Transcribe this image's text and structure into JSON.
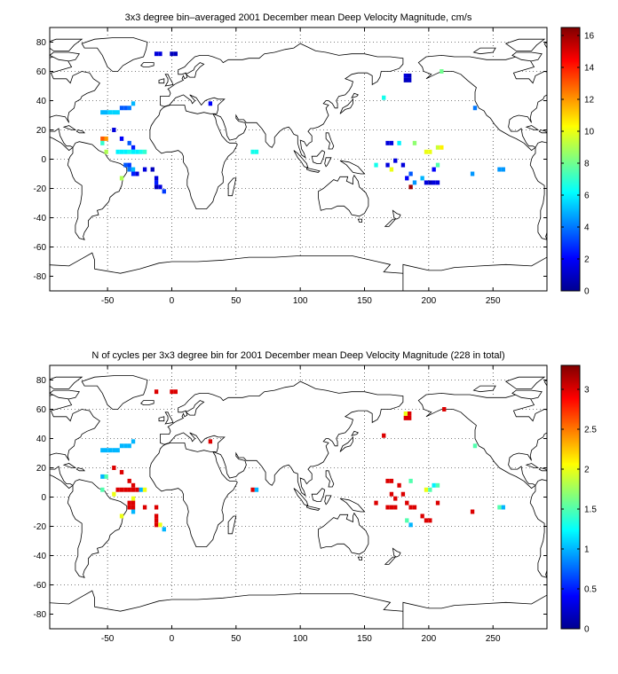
{
  "chart_data": [
    {
      "type": "heatmap",
      "title": "3x3 degree bin–averaged 2001 December mean Deep Velocity Magnitude, cm/s",
      "xlabel": "",
      "ylabel": "",
      "xlim": [
        -95,
        292
      ],
      "ylim": [
        -90,
        90
      ],
      "xticks": [
        -50,
        0,
        50,
        100,
        150,
        200,
        250
      ],
      "yticks": [
        -80,
        -60,
        -40,
        -20,
        0,
        20,
        40,
        60,
        80
      ],
      "grid": true,
      "colorbar": {
        "min": 0,
        "max": 16.5,
        "ticks": [
          0,
          2,
          4,
          6,
          8,
          10,
          12,
          14,
          16
        ]
      },
      "cells": [
        {
          "lon": -12,
          "lat": 72,
          "v": 1.5
        },
        {
          "lon": -9,
          "lat": 72,
          "v": 1.5
        },
        {
          "lon": 0,
          "lat": 72,
          "v": 1.0
        },
        {
          "lon": 3,
          "lat": 72,
          "v": 1.0
        },
        {
          "lon": 182,
          "lat": 57,
          "v": 1.5
        },
        {
          "lon": 185,
          "lat": 57,
          "v": 1.0
        },
        {
          "lon": 182,
          "lat": 54,
          "v": 1.0
        },
        {
          "lon": 185,
          "lat": 54,
          "v": 1.2
        },
        {
          "lon": 210,
          "lat": 60,
          "v": 8.0
        },
        {
          "lon": 165,
          "lat": 42,
          "v": 6.5
        },
        {
          "lon": 236,
          "lat": 35,
          "v": 4.0
        },
        {
          "lon": -54,
          "lat": 32,
          "v": 5.0
        },
        {
          "lon": -51,
          "lat": 32,
          "v": 5.0
        },
        {
          "lon": -48,
          "lat": 32,
          "v": 5.5
        },
        {
          "lon": -45,
          "lat": 32,
          "v": 5.5
        },
        {
          "lon": -42,
          "lat": 32,
          "v": 5.5
        },
        {
          "lon": -39,
          "lat": 35,
          "v": 3.5
        },
        {
          "lon": -36,
          "lat": 35,
          "v": 3.5
        },
        {
          "lon": -33,
          "lat": 35,
          "v": 4.0
        },
        {
          "lon": -30,
          "lat": 38,
          "v": 5.0
        },
        {
          "lon": 30,
          "lat": 38,
          "v": 2.0
        },
        {
          "lon": -45,
          "lat": 20,
          "v": 1.5
        },
        {
          "lon": -39,
          "lat": 14,
          "v": 2.0
        },
        {
          "lon": -54,
          "lat": 14,
          "v": 13.0
        },
        {
          "lon": -51,
          "lat": 14,
          "v": 12.0
        },
        {
          "lon": -54,
          "lat": 11,
          "v": 7.0
        },
        {
          "lon": -33,
          "lat": 11,
          "v": 3.5
        },
        {
          "lon": -30,
          "lat": 8,
          "v": 2.5
        },
        {
          "lon": -42,
          "lat": 5,
          "v": 6.0
        },
        {
          "lon": -39,
          "lat": 5,
          "v": 6.0
        },
        {
          "lon": -36,
          "lat": 5,
          "v": 6.0
        },
        {
          "lon": -33,
          "lat": 5,
          "v": 6.5
        },
        {
          "lon": -30,
          "lat": 5,
          "v": 6.0
        },
        {
          "lon": -27,
          "lat": 5,
          "v": 6.0
        },
        {
          "lon": -24,
          "lat": 5,
          "v": 6.5
        },
        {
          "lon": -21,
          "lat": 5,
          "v": 7.0
        },
        {
          "lon": -51,
          "lat": 5,
          "v": 9.0
        },
        {
          "lon": -36,
          "lat": -4,
          "v": 3.5
        },
        {
          "lon": -33,
          "lat": -4,
          "v": 3.0
        },
        {
          "lon": -33,
          "lat": -7,
          "v": 4.0
        },
        {
          "lon": -30,
          "lat": -7,
          "v": 5.0
        },
        {
          "lon": -30,
          "lat": -10,
          "v": 2.5
        },
        {
          "lon": -27,
          "lat": -10,
          "v": 1.5
        },
        {
          "lon": -21,
          "lat": -7,
          "v": 1.5
        },
        {
          "lon": -15,
          "lat": -7,
          "v": 1.0
        },
        {
          "lon": -39,
          "lat": -13,
          "v": 9.0
        },
        {
          "lon": -12,
          "lat": -13,
          "v": 1.5
        },
        {
          "lon": -12,
          "lat": -16,
          "v": 2.5
        },
        {
          "lon": -12,
          "lat": -19,
          "v": 1.0
        },
        {
          "lon": -9,
          "lat": -19,
          "v": 1.5
        },
        {
          "lon": -6,
          "lat": -22,
          "v": 3.0
        },
        {
          "lon": 63,
          "lat": 5,
          "v": 6.5
        },
        {
          "lon": 66,
          "lat": 5,
          "v": 6.5
        },
        {
          "lon": 168,
          "lat": 11,
          "v": 1.5
        },
        {
          "lon": 171,
          "lat": 11,
          "v": 1.5
        },
        {
          "lon": 177,
          "lat": 11,
          "v": 6.0
        },
        {
          "lon": 189,
          "lat": 11,
          "v": 8.5
        },
        {
          "lon": 207,
          "lat": 8,
          "v": 9.5
        },
        {
          "lon": 210,
          "lat": 8,
          "v": 10.5
        },
        {
          "lon": 198,
          "lat": 5,
          "v": 10.0
        },
        {
          "lon": 201,
          "lat": 5,
          "v": 10.0
        },
        {
          "lon": 174,
          "lat": -1,
          "v": 1.5
        },
        {
          "lon": 159,
          "lat": -4,
          "v": 6.5
        },
        {
          "lon": 168,
          "lat": -4,
          "v": 1.5
        },
        {
          "lon": 180,
          "lat": -4,
          "v": 1.5
        },
        {
          "lon": 207,
          "lat": -4,
          "v": 7.5
        },
        {
          "lon": 171,
          "lat": -7,
          "v": 10.0
        },
        {
          "lon": 204,
          "lat": -7,
          "v": 2.0
        },
        {
          "lon": 186,
          "lat": -10,
          "v": 3.5
        },
        {
          "lon": 183,
          "lat": -13,
          "v": 2.0
        },
        {
          "lon": 195,
          "lat": -13,
          "v": 5.0
        },
        {
          "lon": 189,
          "lat": -16,
          "v": 4.5
        },
        {
          "lon": 198,
          "lat": -16,
          "v": 1.5
        },
        {
          "lon": 201,
          "lat": -16,
          "v": 1.0
        },
        {
          "lon": 204,
          "lat": -16,
          "v": 1.5
        },
        {
          "lon": 207,
          "lat": -16,
          "v": 1.5
        },
        {
          "lon": 186,
          "lat": -19,
          "v": 16.0
        },
        {
          "lon": 255,
          "lat": -7,
          "v": 4.5
        },
        {
          "lon": 258,
          "lat": -7,
          "v": 4.5
        },
        {
          "lon": 234,
          "lat": -10,
          "v": 4.5
        }
      ]
    },
    {
      "type": "heatmap",
      "title": "N of cycles per 3x3 degree bin for 2001 December mean Deep Velocity Magnitude (228 in total)",
      "xlabel": "",
      "ylabel": "",
      "xlim": [
        -95,
        292
      ],
      "ylim": [
        -90,
        90
      ],
      "xticks": [
        -50,
        0,
        50,
        100,
        150,
        200,
        250
      ],
      "yticks": [
        -80,
        -60,
        -40,
        -20,
        0,
        20,
        40,
        60,
        80
      ],
      "grid": true,
      "colorbar": {
        "min": 0,
        "max": 3.3,
        "ticks": [
          0,
          0.5,
          1,
          1.5,
          2,
          2.5,
          3
        ]
      },
      "cells": [
        {
          "lon": -12,
          "lat": 72,
          "v": 3
        },
        {
          "lon": 0,
          "lat": 72,
          "v": 3
        },
        {
          "lon": 3,
          "lat": 72,
          "v": 3
        },
        {
          "lon": 182,
          "lat": 57,
          "v": 2
        },
        {
          "lon": 185,
          "lat": 57,
          "v": 3
        },
        {
          "lon": 182,
          "lat": 54,
          "v": 3
        },
        {
          "lon": 185,
          "lat": 54,
          "v": 3
        },
        {
          "lon": 212,
          "lat": 60,
          "v": 3
        },
        {
          "lon": 165,
          "lat": 42,
          "v": 3
        },
        {
          "lon": 236,
          "lat": 35,
          "v": 1.5
        },
        {
          "lon": -54,
          "lat": 32,
          "v": 1
        },
        {
          "lon": -51,
          "lat": 32,
          "v": 1
        },
        {
          "lon": -48,
          "lat": 32,
          "v": 1
        },
        {
          "lon": -45,
          "lat": 32,
          "v": 1
        },
        {
          "lon": -42,
          "lat": 32,
          "v": 1
        },
        {
          "lon": -39,
          "lat": 35,
          "v": 1
        },
        {
          "lon": -36,
          "lat": 35,
          "v": 1
        },
        {
          "lon": -33,
          "lat": 35,
          "v": 1
        },
        {
          "lon": -30,
          "lat": 38,
          "v": 1
        },
        {
          "lon": 30,
          "lat": 38,
          "v": 3
        },
        {
          "lon": -45,
          "lat": 20,
          "v": 3
        },
        {
          "lon": -39,
          "lat": 17,
          "v": 3
        },
        {
          "lon": -51,
          "lat": 14,
          "v": 1.5
        },
        {
          "lon": -54,
          "lat": 14,
          "v": 1
        },
        {
          "lon": -33,
          "lat": 11,
          "v": 3
        },
        {
          "lon": -54,
          "lat": 5,
          "v": 1.5
        },
        {
          "lon": -42,
          "lat": 5,
          "v": 3
        },
        {
          "lon": -39,
          "lat": 5,
          "v": 3
        },
        {
          "lon": -36,
          "lat": 5,
          "v": 3
        },
        {
          "lon": -33,
          "lat": 5,
          "v": 3
        },
        {
          "lon": -30,
          "lat": 5,
          "v": 3
        },
        {
          "lon": -27,
          "lat": 5,
          "v": 3
        },
        {
          "lon": -24,
          "lat": 5,
          "v": 1
        },
        {
          "lon": -21,
          "lat": 5,
          "v": 2
        },
        {
          "lon": -30,
          "lat": 8,
          "v": 3
        },
        {
          "lon": -45,
          "lat": 2,
          "v": 2
        },
        {
          "lon": -30,
          "lat": -1,
          "v": 2
        },
        {
          "lon": -33,
          "lat": -4,
          "v": 3
        },
        {
          "lon": -30,
          "lat": -4,
          "v": 3
        },
        {
          "lon": -33,
          "lat": -7,
          "v": 3
        },
        {
          "lon": -30,
          "lat": -7,
          "v": 3
        },
        {
          "lon": -30,
          "lat": -10,
          "v": 1
        },
        {
          "lon": -21,
          "lat": -7,
          "v": 3
        },
        {
          "lon": -12,
          "lat": -7,
          "v": 3
        },
        {
          "lon": -39,
          "lat": -13,
          "v": 2
        },
        {
          "lon": -12,
          "lat": -13,
          "v": 3
        },
        {
          "lon": -12,
          "lat": -16,
          "v": 3
        },
        {
          "lon": -12,
          "lat": -19,
          "v": 3
        },
        {
          "lon": -9,
          "lat": -19,
          "v": 2
        },
        {
          "lon": -6,
          "lat": -22,
          "v": 1
        },
        {
          "lon": 63,
          "lat": 5,
          "v": 3
        },
        {
          "lon": 66,
          "lat": 5,
          "v": 1
        },
        {
          "lon": 168,
          "lat": 11,
          "v": 3
        },
        {
          "lon": 171,
          "lat": 11,
          "v": 3
        },
        {
          "lon": 186,
          "lat": 11,
          "v": 1.5
        },
        {
          "lon": 177,
          "lat": 8,
          "v": 3
        },
        {
          "lon": 204,
          "lat": 8,
          "v": 1.2
        },
        {
          "lon": 207,
          "lat": 8,
          "v": 1.5
        },
        {
          "lon": 198,
          "lat": 5,
          "v": 2
        },
        {
          "lon": 201,
          "lat": 5,
          "v": 1.5
        },
        {
          "lon": 171,
          "lat": 2,
          "v": 3
        },
        {
          "lon": 180,
          "lat": 2,
          "v": 3
        },
        {
          "lon": 174,
          "lat": -1,
          "v": 3
        },
        {
          "lon": 159,
          "lat": -4,
          "v": 3
        },
        {
          "lon": 183,
          "lat": -4,
          "v": 3
        },
        {
          "lon": 207,
          "lat": -4,
          "v": 3
        },
        {
          "lon": 168,
          "lat": -7,
          "v": 3
        },
        {
          "lon": 171,
          "lat": -7,
          "v": 3
        },
        {
          "lon": 174,
          "lat": -7,
          "v": 3
        },
        {
          "lon": 186,
          "lat": -7,
          "v": 3
        },
        {
          "lon": 189,
          "lat": -7,
          "v": 3
        },
        {
          "lon": 195,
          "lat": -13,
          "v": 3
        },
        {
          "lon": 183,
          "lat": -16,
          "v": 1.5
        },
        {
          "lon": 198,
          "lat": -16,
          "v": 3
        },
        {
          "lon": 201,
          "lat": -16,
          "v": 3
        },
        {
          "lon": 186,
          "lat": -19,
          "v": 1
        },
        {
          "lon": 234,
          "lat": -10,
          "v": 3
        },
        {
          "lon": 255,
          "lat": -7,
          "v": 1.5
        },
        {
          "lon": 258,
          "lat": -7,
          "v": 1
        }
      ]
    }
  ]
}
